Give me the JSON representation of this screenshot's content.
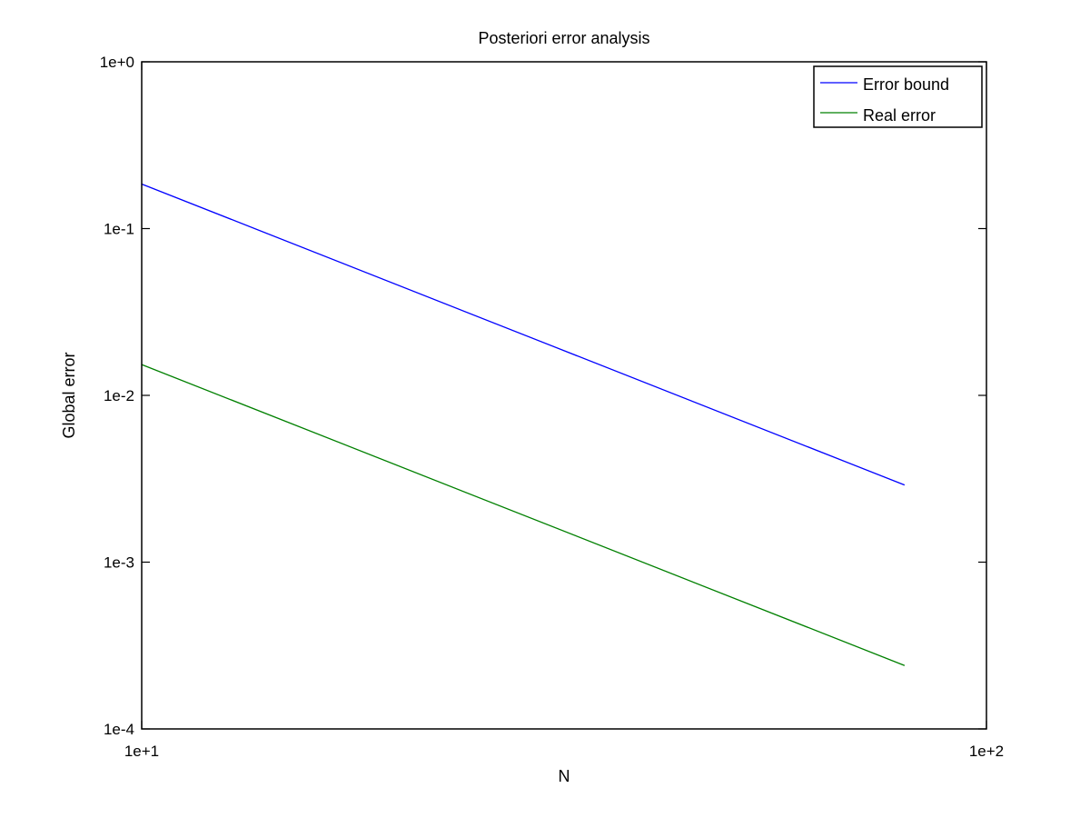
{
  "chart_data": {
    "type": "line",
    "title": "Posteriori error analysis",
    "xlabel": "N",
    "ylabel": "Global error",
    "x_scale": "log",
    "y_scale": "log",
    "xlim": [
      10,
      100
    ],
    "ylim": [
      0.0001,
      1
    ],
    "x_ticks": [
      10,
      100
    ],
    "x_tick_labels": [
      "1e+1",
      "1e+2"
    ],
    "y_ticks": [
      0.0001,
      0.001,
      0.01,
      0.1,
      1
    ],
    "y_tick_labels": [
      "1e-4",
      "1e-3",
      "1e-2",
      "1e-1",
      "1e+0"
    ],
    "grid": false,
    "legend_position": "top-right",
    "series": [
      {
        "name": "Error bound",
        "color": "#0000ff",
        "x": [
          10,
          80
        ],
        "y": [
          0.185,
          0.0029
        ]
      },
      {
        "name": "Real error",
        "color": "#008000",
        "x": [
          10,
          80
        ],
        "y": [
          0.0153,
          0.00024
        ]
      }
    ]
  }
}
